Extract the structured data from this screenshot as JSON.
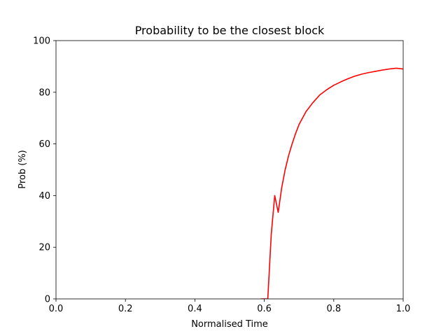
{
  "chart_data": {
    "type": "line",
    "title": "Probability to be the closest block",
    "xlabel": "Normalised Time",
    "ylabel": "Prob (%)",
    "xlim": [
      0.0,
      1.0
    ],
    "ylim": [
      0,
      100
    ],
    "xticks": [
      "0.0",
      "0.2",
      "0.4",
      "0.6",
      "0.8",
      "1.0"
    ],
    "yticks": [
      "0",
      "20",
      "40",
      "60",
      "80",
      "100"
    ],
    "grid": false,
    "legend": "none",
    "series": [
      {
        "color": "#ff0000",
        "x": [
          0.59,
          0.6,
          0.61,
          0.62,
          0.63,
          0.64,
          0.65,
          0.66,
          0.67,
          0.68,
          0.69,
          0.7,
          0.72,
          0.74,
          0.76,
          0.78,
          0.8,
          0.82,
          0.84,
          0.86,
          0.88,
          0.9,
          0.92,
          0.94,
          0.96,
          0.98,
          1.0
        ],
        "y": [
          0,
          0,
          0,
          25,
          40,
          33.5,
          43,
          50,
          55.5,
          60,
          64,
          67.5,
          72.5,
          76,
          79,
          81,
          82.7,
          84,
          85.2,
          86.2,
          87,
          87.6,
          88.1,
          88.6,
          89,
          89.3,
          89
        ]
      }
    ]
  }
}
